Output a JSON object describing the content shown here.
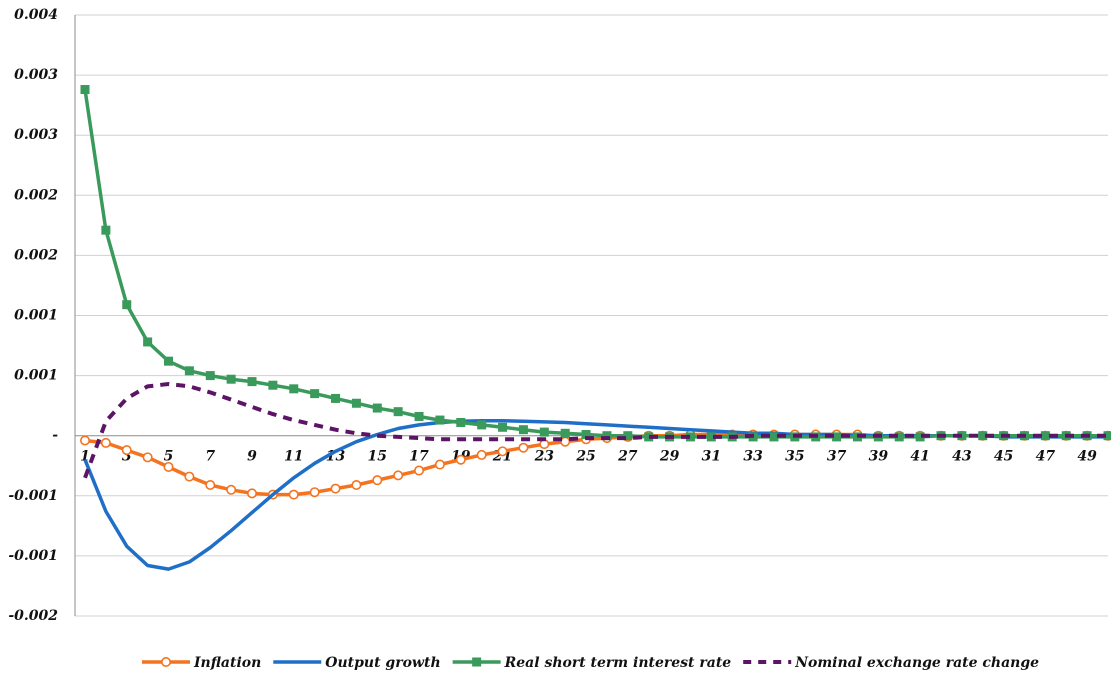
{
  "chart_data": {
    "type": "line",
    "title": "",
    "xlabel": "",
    "ylabel": "",
    "x": [
      1,
      2,
      3,
      4,
      5,
      6,
      7,
      8,
      9,
      10,
      11,
      12,
      13,
      14,
      15,
      16,
      17,
      18,
      19,
      20,
      21,
      22,
      23,
      24,
      25,
      26,
      27,
      28,
      29,
      30,
      31,
      32,
      33,
      34,
      35,
      36,
      37,
      38,
      39,
      40,
      41,
      42,
      43,
      44,
      45,
      46,
      47,
      48,
      49,
      50
    ],
    "x_tick_labels": [
      "1",
      "3",
      "5",
      "7",
      "9",
      "11",
      "13",
      "15",
      "17",
      "19",
      "21",
      "23",
      "25",
      "27",
      "29",
      "31",
      "33",
      "35",
      "37",
      "39",
      "41",
      "43",
      "45",
      "47",
      "49"
    ],
    "x_tick_values": [
      1,
      3,
      5,
      7,
      9,
      11,
      13,
      15,
      17,
      19,
      21,
      23,
      25,
      27,
      29,
      31,
      33,
      35,
      37,
      39,
      41,
      43,
      45,
      47,
      49
    ],
    "ylim": [
      -0.0015,
      0.0035
    ],
    "y_tick_values": [
      0.0035,
      0.003,
      0.0025,
      0.002,
      0.0015,
      0.001,
      0.0005,
      0,
      -0.0005,
      -0.001,
      -0.0015
    ],
    "y_tick_labels": [
      "0.004",
      "0.003",
      "0.003",
      "0.002",
      "0.002",
      "0.001",
      "0.001",
      "-",
      "-0.001",
      "-0.001",
      "-0.002"
    ],
    "grid": "horizontal",
    "legend_position": "bottom",
    "series": [
      {
        "name": "Inflation",
        "color": "#F4731F",
        "style": "solid",
        "marker": "circle-open",
        "values": [
          -4e-05,
          -6e-05,
          -0.00012,
          -0.00018,
          -0.00026,
          -0.00034,
          -0.00041,
          -0.00045,
          -0.00048,
          -0.00049,
          -0.00049,
          -0.00047,
          -0.00044,
          -0.00041,
          -0.00037,
          -0.00033,
          -0.00029,
          -0.00024,
          -0.0002,
          -0.00016,
          -0.00013,
          -0.0001,
          -7e-05,
          -5e-05,
          -3e-05,
          -2e-05,
          -1e-05,
          0,
          0,
          1e-05,
          1e-05,
          1e-05,
          1e-05,
          1e-05,
          1e-05,
          1e-05,
          1e-05,
          1e-05,
          0,
          0,
          0,
          0,
          0,
          0,
          0,
          0,
          0,
          0,
          0,
          0
        ]
      },
      {
        "name": "Output growth",
        "color": "#1F6FC8",
        "style": "solid",
        "marker": "none",
        "values": [
          -0.0002,
          -0.00063,
          -0.00092,
          -0.00108,
          -0.00111,
          -0.00105,
          -0.00093,
          -0.00079,
          -0.00064,
          -0.00049,
          -0.00035,
          -0.00023,
          -0.00013,
          -5e-05,
          1e-05,
          6e-05,
          9e-05,
          0.00011,
          0.00012,
          0.000125,
          0.000125,
          0.00012,
          0.000115,
          0.00011,
          0.0001,
          9e-05,
          8e-05,
          7e-05,
          6e-05,
          5e-05,
          4e-05,
          3e-05,
          2e-05,
          2e-05,
          1e-05,
          1e-05,
          1e-05,
          0,
          0,
          0,
          0,
          0,
          0,
          0,
          -1e-05,
          -1e-05,
          -1e-05,
          -1e-05,
          -1e-05,
          -1e-05
        ]
      },
      {
        "name": "Real short term interest rate",
        "color": "#3A9A5B",
        "style": "solid",
        "marker": "square",
        "values": [
          0.00288,
          0.00171,
          0.00109,
          0.00078,
          0.00062,
          0.00054,
          0.0005,
          0.00047,
          0.00045,
          0.00042,
          0.00039,
          0.00035,
          0.00031,
          0.00027,
          0.00023,
          0.0002,
          0.00016,
          0.00013,
          0.00011,
          9e-05,
          7e-05,
          5e-05,
          3e-05,
          2e-05,
          1e-05,
          0,
          0,
          -1e-05,
          -1e-05,
          -1e-05,
          -1e-05,
          -1e-05,
          -1e-05,
          -1e-05,
          -1e-05,
          -1e-05,
          -1e-05,
          -1e-05,
          -1e-05,
          -1e-05,
          -1e-05,
          0,
          0,
          0,
          0,
          0,
          0,
          0,
          0,
          0
        ]
      },
      {
        "name": "Nominal exchange rate change",
        "color": "#5C1466",
        "style": "dashed",
        "marker": "none",
        "values": [
          -0.00035,
          0.00012,
          0.00031,
          0.00041,
          0.00043,
          0.00041,
          0.00036,
          0.0003,
          0.00024,
          0.00018,
          0.00013,
          9e-05,
          5e-05,
          2e-05,
          0,
          -1e-05,
          -2e-05,
          -3e-05,
          -3e-05,
          -3e-05,
          -3e-05,
          -3e-05,
          -3e-05,
          -3e-05,
          -2e-05,
          -2e-05,
          -2e-05,
          -1e-05,
          -1e-05,
          -1e-05,
          -1e-05,
          -1e-05,
          0,
          0,
          0,
          0,
          0,
          0,
          0,
          0,
          0,
          0,
          0,
          0,
          0,
          0,
          0,
          0,
          0,
          0
        ]
      }
    ]
  }
}
